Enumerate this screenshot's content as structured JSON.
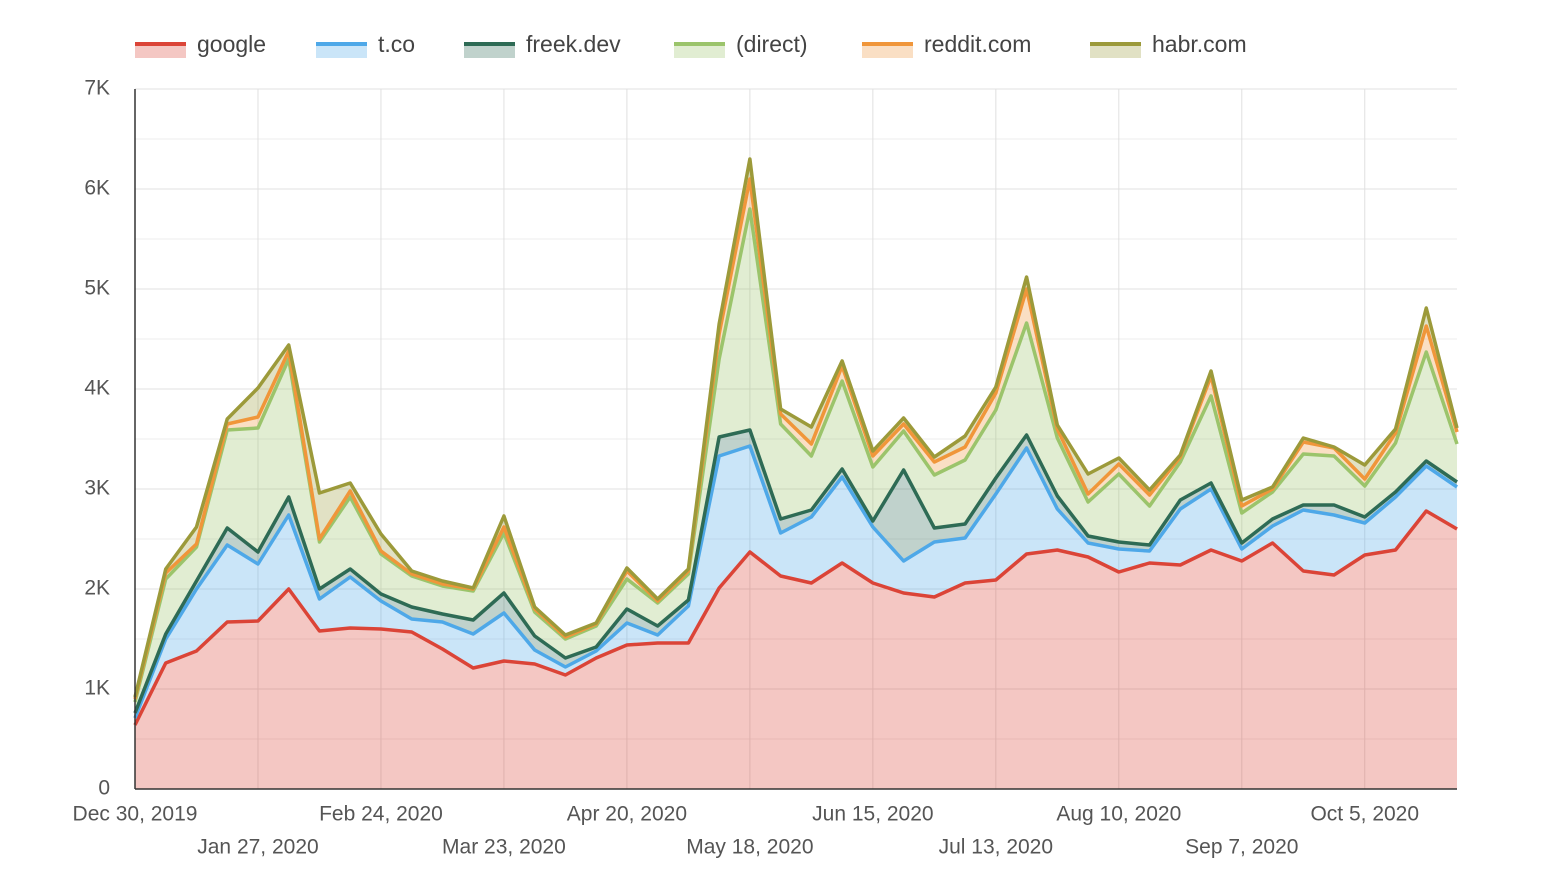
{
  "chart_data": {
    "type": "stacked_area",
    "categories": [
      "Dec 30, 2019",
      "Jan 6, 2020",
      "Jan 13, 2020",
      "Jan 20, 2020",
      "Jan 27, 2020",
      "Feb 3, 2020",
      "Feb 10, 2020",
      "Feb 17, 2020",
      "Feb 24, 2020",
      "Mar 2, 2020",
      "Mar 9, 2020",
      "Mar 16, 2020",
      "Mar 23, 2020",
      "Mar 30, 2020",
      "Apr 6, 2020",
      "Apr 13, 2020",
      "Apr 20, 2020",
      "Apr 27, 2020",
      "May 4, 2020",
      "May 11, 2020",
      "May 18, 2020",
      "May 25, 2020",
      "Jun 1, 2020",
      "Jun 8, 2020",
      "Jun 15, 2020",
      "Jun 22, 2020",
      "Jun 29, 2020",
      "Jul 6, 2020",
      "Jul 13, 2020",
      "Jul 20, 2020",
      "Jul 27, 2020",
      "Aug 3, 2020",
      "Aug 10, 2020",
      "Aug 17, 2020",
      "Aug 24, 2020",
      "Aug 31, 2020",
      "Sep 7, 2020",
      "Sep 14, 2020",
      "Sep 21, 2020",
      "Sep 28, 2020",
      "Oct 5, 2020",
      "Oct 12, 2020",
      "Oct 19, 2020",
      "Oct 26, 2020"
    ],
    "xticks": [
      "Dec 30, 2019",
      "Jan 27, 2020",
      "Feb 24, 2020",
      "Mar 23, 2020",
      "Apr 20, 2020",
      "May 18, 2020",
      "Jun 15, 2020",
      "Jul 13, 2020",
      "Aug 10, 2020",
      "Sep 7, 2020",
      "Oct 5, 2020"
    ],
    "series": [
      {
        "name": "google",
        "color": "#db4437",
        "values": [
          640,
          1260,
          1380,
          1670,
          1680,
          2000,
          1580,
          1610,
          1600,
          1570,
          1400,
          1210,
          1280,
          1250,
          1140,
          1310,
          1440,
          1460,
          1460,
          2010,
          2370,
          2130,
          2060,
          2260,
          2060,
          1960,
          1920,
          2060,
          2090,
          2350,
          2390,
          2320,
          2170,
          2260,
          2240,
          2390,
          2280,
          2460,
          2180,
          2140,
          2340,
          2390,
          2780,
          2600
        ]
      },
      {
        "name": "t.co",
        "color": "#4ea8e8",
        "values": [
          70,
          240,
          620,
          770,
          570,
          740,
          320,
          510,
          280,
          130,
          270,
          340,
          480,
          140,
          80,
          70,
          220,
          80,
          370,
          1320,
          1060,
          430,
          660,
          860,
          560,
          320,
          550,
          450,
          860,
          1060,
          410,
          140,
          230,
          120,
          560,
          610,
          120,
          170,
          610,
          600,
          320,
          530,
          450,
          420
        ]
      },
      {
        "name": "freek.dev",
        "color": "#2e6b55",
        "values": [
          50,
          50,
          80,
          170,
          120,
          180,
          100,
          80,
          70,
          120,
          80,
          140,
          200,
          140,
          90,
          40,
          140,
          90,
          60,
          190,
          160,
          140,
          70,
          80,
          60,
          910,
          140,
          140,
          160,
          130,
          130,
          70,
          70,
          60,
          90,
          60,
          60,
          70,
          50,
          100,
          60,
          50,
          50,
          50
        ]
      },
      {
        "name": "(direct)",
        "color": "#9bc46b",
        "values": [
          110,
          550,
          340,
          980,
          1240,
          1380,
          470,
          720,
          400,
          310,
          280,
          290,
          600,
          240,
          190,
          210,
          300,
          230,
          260,
          780,
          2210,
          950,
          540,
          880,
          540,
          390,
          530,
          640,
          680,
          1120,
          580,
          340,
          680,
          390,
          380,
          870,
          300,
          270,
          510,
          490,
          310,
          490,
          1090,
          380
        ]
      },
      {
        "name": "reddit.com",
        "color": "#f0963a",
        "values": [
          30,
          60,
          30,
          60,
          110,
          80,
          30,
          60,
          30,
          20,
          20,
          20,
          60,
          30,
          20,
          20,
          80,
          20,
          30,
          250,
          300,
          100,
          120,
          150,
          110,
          70,
          130,
          130,
          170,
          340,
          90,
          80,
          100,
          110,
          50,
          200,
          70,
          30,
          120,
          80,
          70,
          100,
          260,
          120
        ]
      },
      {
        "name": "habr.com",
        "color": "#9c9a3a",
        "values": [
          20,
          40,
          170,
          50,
          290,
          60,
          460,
          80,
          170,
          30,
          30,
          10,
          110,
          20,
          20,
          10,
          30,
          20,
          20,
          100,
          200,
          50,
          170,
          50,
          50,
          60,
          50,
          110,
          60,
          120,
          40,
          200,
          60,
          50,
          20,
          50,
          60,
          20,
          40,
          10,
          140,
          40,
          180,
          40
        ]
      }
    ],
    "ylim": [
      0,
      7000
    ],
    "yticks": [
      {
        "value": 0,
        "label": "0"
      },
      {
        "value": 1000,
        "label": "1K"
      },
      {
        "value": 2000,
        "label": "2K"
      },
      {
        "value": 3000,
        "label": "3K"
      },
      {
        "value": 4000,
        "label": "4K"
      },
      {
        "value": 5000,
        "label": "5K"
      },
      {
        "value": 6000,
        "label": "6K"
      },
      {
        "value": 7000,
        "label": "7K"
      }
    ],
    "y_minor_ticks": [
      500,
      1500,
      2500,
      3500,
      4500,
      5500,
      6500
    ],
    "grid": true,
    "legend": "top"
  }
}
